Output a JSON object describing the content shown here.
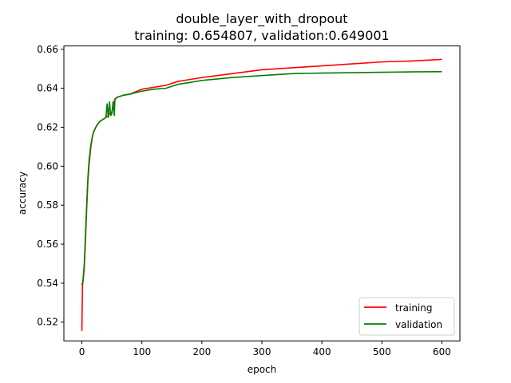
{
  "chart_data": {
    "type": "line",
    "title": "double_layer_with_dropout",
    "subtitle": "training: 0.654807, validation:0.649001",
    "xlabel": "epoch",
    "ylabel": "accuracy",
    "xlim": [
      -30,
      630
    ],
    "ylim": [
      0.5104,
      0.6617
    ],
    "xticks": [
      0,
      100,
      200,
      300,
      400,
      500,
      600
    ],
    "yticks": [
      0.52,
      0.54,
      0.56,
      0.58,
      0.6,
      0.62,
      0.64,
      0.66
    ],
    "ytick_labels": [
      "0.52",
      "0.54",
      "0.56",
      "0.58",
      "0.60",
      "0.62",
      "0.64",
      "0.66"
    ],
    "legend_position": "lower-right",
    "grid": false,
    "series": [
      {
        "name": "training",
        "color": "#ff0000",
        "x": [
          0,
          1,
          2,
          4,
          6,
          8,
          10,
          12,
          15,
          18,
          20,
          25,
          30,
          35,
          40,
          45,
          50,
          55,
          60,
          70,
          80,
          100,
          120,
          140,
          160,
          180,
          200,
          250,
          300,
          350,
          400,
          450,
          500,
          550,
          600
        ],
        "y": [
          0.5155,
          0.539,
          0.541,
          0.548,
          0.562,
          0.578,
          0.592,
          0.601,
          0.61,
          0.616,
          0.618,
          0.621,
          0.623,
          0.624,
          0.625,
          0.6265,
          0.628,
          0.6345,
          0.6355,
          0.6365,
          0.637,
          0.6395,
          0.6405,
          0.6415,
          0.6435,
          0.6445,
          0.6455,
          0.6475,
          0.6495,
          0.6505,
          0.6515,
          0.6525,
          0.6535,
          0.654,
          0.6548
        ]
      },
      {
        "name": "validation",
        "color": "#008000",
        "x": [
          0,
          1,
          2,
          4,
          6,
          8,
          10,
          12,
          15,
          18,
          20,
          25,
          30,
          35,
          40,
          42,
          44,
          46,
          48,
          50,
          52,
          54,
          55,
          57,
          60,
          70,
          80,
          100,
          120,
          140,
          160,
          180,
          200,
          250,
          300,
          350,
          400,
          450,
          500,
          550,
          600
        ],
        "y": [
          0.539,
          0.54,
          0.542,
          0.55,
          0.565,
          0.58,
          0.594,
          0.603,
          0.611,
          0.616,
          0.618,
          0.621,
          0.623,
          0.624,
          0.625,
          0.632,
          0.625,
          0.633,
          0.626,
          0.627,
          0.633,
          0.626,
          0.634,
          0.635,
          0.6355,
          0.6365,
          0.637,
          0.6385,
          0.6395,
          0.64,
          0.642,
          0.643,
          0.644,
          0.6455,
          0.6465,
          0.6475,
          0.6478,
          0.648,
          0.6482,
          0.6484,
          0.6485
        ]
      }
    ]
  }
}
